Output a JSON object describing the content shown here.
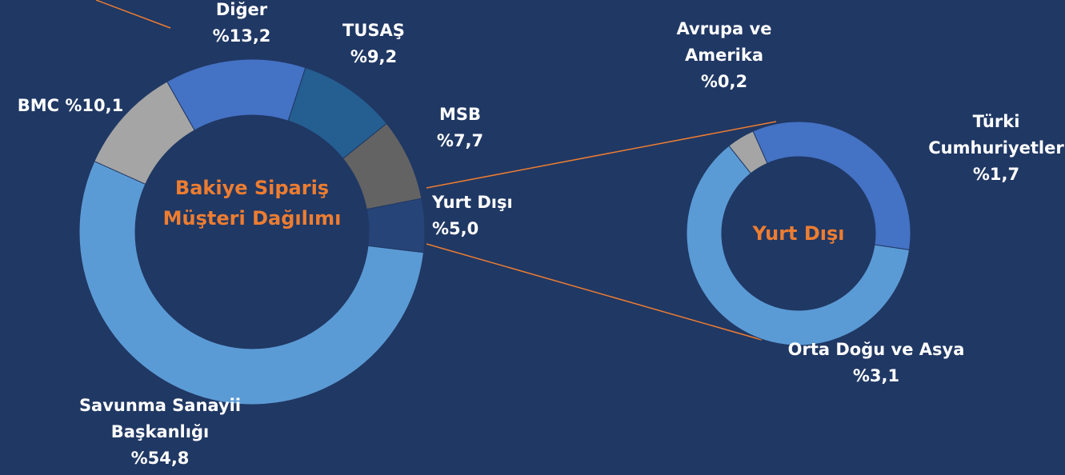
{
  "chart_data": [
    {
      "type": "donut",
      "title": "Bakiye Sipariş Müşteri Dağılımı",
      "categories": [
        "Diğer",
        "TUSAŞ",
        "MSB",
        "Yurt Dışı",
        "Savunma Sanayii Başkanlığı",
        "BMC"
      ],
      "values": [
        13.2,
        9.2,
        7.7,
        5.0,
        54.8,
        10.1
      ],
      "value_labels": [
        "%13,2",
        "%9,2",
        "%7,7",
        "%5,0",
        "%54,8",
        "%10,1"
      ],
      "colors": [
        "#4472c4",
        "#255e91",
        "#636363",
        "#264478",
        "#5b9bd5",
        "#a5a5a5"
      ]
    },
    {
      "type": "donut",
      "title": "Yurt Dışı",
      "categories": [
        "Türki Cumhuriyetler",
        "Orta Doğu ve Asya",
        "Avrupa ve Amerika"
      ],
      "values": [
        1.7,
        3.1,
        0.2
      ],
      "value_labels": [
        "%1,7",
        "%3,1",
        "%0,2"
      ],
      "colors": [
        "#4472c4",
        "#5b9bd5",
        "#a5a5a5"
      ]
    }
  ]
}
